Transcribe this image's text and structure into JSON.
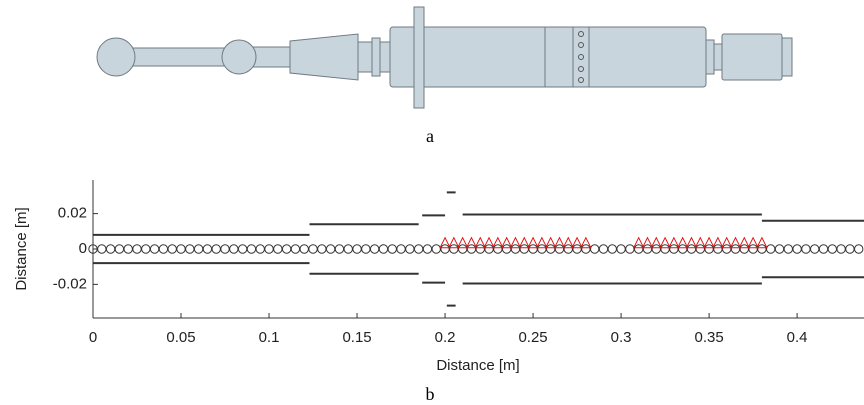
{
  "figure": {
    "caption_a": "a",
    "caption_b": "b"
  },
  "chart_data": {
    "type": "line",
    "xlabel": "Distance [m]",
    "ylabel": "Distance [m]",
    "xlim": [
      0,
      0.438
    ],
    "ylim": [
      -0.039,
      0.039
    ],
    "xticks": [
      0,
      0.05,
      0.1,
      0.15,
      0.2,
      0.25,
      0.3,
      0.35,
      0.4
    ],
    "yticks": [
      -0.02,
      0,
      0.02
    ],
    "series": [
      {
        "color": "#333333",
        "x": [
          0,
          0.123
        ],
        "values": [
          0.008,
          0.008
        ]
      },
      {
        "color": "#333333",
        "x": [
          0,
          0.123
        ],
        "values": [
          -0.008,
          -0.008
        ]
      },
      {
        "color": "#333333",
        "x": [
          0.123,
          0.185
        ],
        "values": [
          0.014,
          0.014
        ]
      },
      {
        "color": "#333333",
        "x": [
          0.123,
          0.185
        ],
        "values": [
          -0.014,
          -0.014
        ]
      },
      {
        "color": "#333333",
        "x": [
          0.187,
          0.2
        ],
        "values": [
          0.019,
          0.019
        ]
      },
      {
        "color": "#333333",
        "x": [
          0.187,
          0.2
        ],
        "values": [
          -0.019,
          -0.019
        ]
      },
      {
        "color": "#333333",
        "x": [
          0.201,
          0.206
        ],
        "values": [
          0.032,
          0.032
        ]
      },
      {
        "color": "#333333",
        "x": [
          0.201,
          0.206
        ],
        "values": [
          -0.032,
          -0.032
        ]
      },
      {
        "color": "#333333",
        "x": [
          0.21,
          0.38
        ],
        "values": [
          0.0195,
          0.0195
        ]
      },
      {
        "color": "#333333",
        "x": [
          0.21,
          0.38
        ],
        "values": [
          -0.0195,
          -0.0195
        ]
      },
      {
        "color": "#333333",
        "x": [
          0.38,
          0.438
        ],
        "values": [
          0.016,
          0.016
        ]
      },
      {
        "color": "#333333",
        "x": [
          0.38,
          0.438
        ],
        "values": [
          -0.016,
          -0.016
        ]
      },
      {
        "color": "#333333",
        "marker": "circle",
        "x": [
          0,
          0.005,
          0.01,
          0.015,
          0.02,
          0.025,
          0.03,
          0.035,
          0.04,
          0.045,
          0.05,
          0.055,
          0.06,
          0.065,
          0.07,
          0.075,
          0.08,
          0.085,
          0.09,
          0.095,
          0.1,
          0.105,
          0.11,
          0.115,
          0.12,
          0.125,
          0.13,
          0.135,
          0.14,
          0.145,
          0.15,
          0.155,
          0.16,
          0.165,
          0.17,
          0.175,
          0.18,
          0.185,
          0.19,
          0.195,
          0.2,
          0.205,
          0.21,
          0.215,
          0.22,
          0.225,
          0.23,
          0.235,
          0.24,
          0.245,
          0.25,
          0.255,
          0.26,
          0.265,
          0.27,
          0.275,
          0.28,
          0.285,
          0.29,
          0.295,
          0.3,
          0.305,
          0.31,
          0.315,
          0.32,
          0.325,
          0.33,
          0.335,
          0.34,
          0.345,
          0.35,
          0.355,
          0.36,
          0.365,
          0.37,
          0.375,
          0.38,
          0.385,
          0.39,
          0.395,
          0.4,
          0.405,
          0.41,
          0.415,
          0.42,
          0.425,
          0.43,
          0.435
        ],
        "values": [
          0,
          0,
          0,
          0,
          0,
          0,
          0,
          0,
          0,
          0,
          0,
          0,
          0,
          0,
          0,
          0,
          0,
          0,
          0,
          0,
          0,
          0,
          0,
          0,
          0,
          0,
          0,
          0,
          0,
          0,
          0,
          0,
          0,
          0,
          0,
          0,
          0,
          0,
          0,
          0,
          0,
          0,
          0,
          0,
          0,
          0,
          0,
          0,
          0,
          0,
          0,
          0,
          0,
          0,
          0,
          0,
          0,
          0,
          0,
          0,
          0,
          0,
          0,
          0,
          0,
          0,
          0,
          0,
          0,
          0,
          0,
          0,
          0,
          0,
          0,
          0,
          0,
          0,
          0,
          0,
          0,
          0,
          0,
          0,
          0,
          0,
          0,
          0
        ]
      },
      {
        "color": "#e01010",
        "marker": "triangle",
        "x": [
          0.2,
          0.205,
          0.21,
          0.215,
          0.22,
          0.225,
          0.23,
          0.235,
          0.24,
          0.245,
          0.25,
          0.255,
          0.26,
          0.265,
          0.27,
          0.275,
          0.28
        ],
        "values": [
          0.003,
          0.003,
          0.003,
          0.003,
          0.003,
          0.003,
          0.003,
          0.003,
          0.003,
          0.003,
          0.003,
          0.003,
          0.003,
          0.003,
          0.003,
          0.003,
          0.003
        ]
      },
      {
        "color": "#e01010",
        "marker": "triangle",
        "x": [
          0.31,
          0.315,
          0.32,
          0.325,
          0.33,
          0.335,
          0.34,
          0.345,
          0.35,
          0.355,
          0.36,
          0.365,
          0.37,
          0.375,
          0.38
        ],
        "values": [
          0.003,
          0.003,
          0.003,
          0.003,
          0.003,
          0.003,
          0.003,
          0.003,
          0.003,
          0.003,
          0.003,
          0.003,
          0.003,
          0.003,
          0.003
        ]
      }
    ]
  }
}
